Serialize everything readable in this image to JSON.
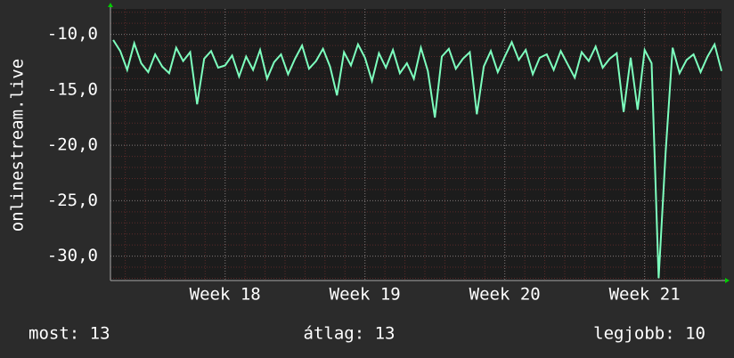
{
  "chart_data": {
    "type": "line",
    "y_label": "onlinestream.live",
    "x": [
      17.2,
      17.25,
      17.3,
      17.35,
      17.4,
      17.45,
      17.5,
      17.55,
      17.6,
      17.65,
      17.7,
      17.75,
      17.8,
      17.85,
      17.9,
      17.95,
      18.0,
      18.05,
      18.1,
      18.15,
      18.2,
      18.25,
      18.3,
      18.35,
      18.4,
      18.45,
      18.5,
      18.55,
      18.6,
      18.65,
      18.7,
      18.75,
      18.8,
      18.85,
      18.9,
      18.95,
      19.0,
      19.05,
      19.1,
      19.15,
      19.2,
      19.25,
      19.3,
      19.35,
      19.4,
      19.45,
      19.5,
      19.55,
      19.6,
      19.65,
      19.7,
      19.75,
      19.8,
      19.85,
      19.9,
      19.95,
      20.0,
      20.05,
      20.1,
      20.15,
      20.2,
      20.25,
      20.3,
      20.35,
      20.4,
      20.45,
      20.5,
      20.55,
      20.6,
      20.65,
      20.7,
      20.75,
      20.8,
      20.85,
      20.9,
      20.95,
      21.0,
      21.05,
      21.1,
      21.15,
      21.2,
      21.25,
      21.3,
      21.35,
      21.4,
      21.45,
      21.5,
      21.55
    ],
    "series": [
      {
        "color": "#7dffbe",
        "values": [
          -10.5,
          -11.5,
          -13.2,
          -10.8,
          -12.6,
          -13.4,
          -11.8,
          -12.9,
          -13.5,
          -11.2,
          -12.4,
          -11.6,
          -16.3,
          -12.2,
          -11.5,
          -13.0,
          -12.8,
          -11.9,
          -13.8,
          -12.0,
          -13.2,
          -11.4,
          -14.0,
          -12.5,
          -11.8,
          -13.6,
          -12.2,
          -11.0,
          -13.1,
          -12.4,
          -11.3,
          -12.9,
          -15.5,
          -11.6,
          -12.8,
          -10.9,
          -12.1,
          -14.2,
          -11.7,
          -13.0,
          -11.4,
          -13.5,
          -12.6,
          -14.0,
          -11.2,
          -13.3,
          -17.5,
          -12.0,
          -11.3,
          -13.1,
          -12.2,
          -11.6,
          -17.2,
          -12.9,
          -11.5,
          -13.4,
          -12.0,
          -10.7,
          -12.3,
          -11.4,
          -13.6,
          -12.1,
          -11.8,
          -13.2,
          -11.5,
          -12.7,
          -13.9,
          -11.6,
          -12.4,
          -11.1,
          -13.0,
          -12.2,
          -11.7,
          -17.0,
          -12.1,
          -16.8,
          -11.4,
          -12.6,
          -32.0,
          -20.7,
          -11.2,
          -13.5,
          -12.3,
          -11.8,
          -13.4,
          -12.0,
          -10.9,
          -13.3
        ]
      }
    ],
    "xlim": [
      17.18,
      21.55
    ],
    "xticks": [
      {
        "value": 18,
        "label": "Week 18"
      },
      {
        "value": 19,
        "label": "Week 19"
      },
      {
        "value": 20,
        "label": "Week 20"
      },
      {
        "value": 21,
        "label": "Week 21"
      }
    ],
    "ylim": [
      -32.2,
      -7.7
    ],
    "yticks": [
      {
        "value": -10,
        "label": "-10,0"
      },
      {
        "value": -15,
        "label": "-15,0"
      },
      {
        "value": -20,
        "label": "-20,0"
      },
      {
        "value": -25,
        "label": "-25,0"
      },
      {
        "value": -30,
        "label": "-30,0"
      }
    ],
    "grid": true,
    "footer": [
      "most: 13",
      "átlag: 13",
      "legjobb: 10"
    ]
  }
}
